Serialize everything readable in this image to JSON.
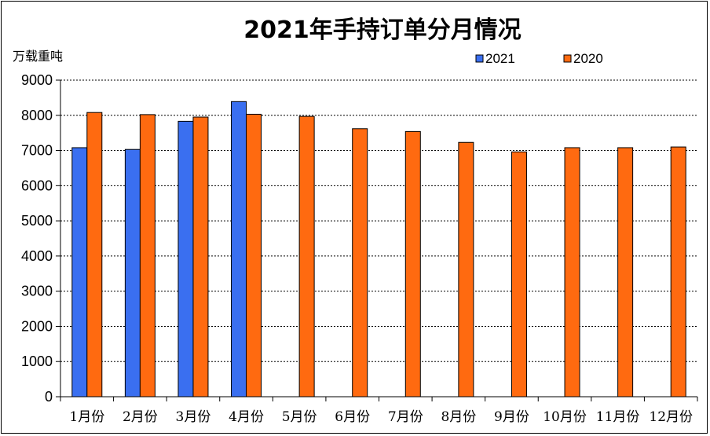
{
  "chart_data": {
    "type": "bar",
    "title": "2021年手持订单分月情况",
    "ylabel": "万载重吨",
    "xlabel": "",
    "ylim": [
      0,
      9000
    ],
    "yticks": [
      0,
      1000,
      2000,
      3000,
      4000,
      5000,
      6000,
      7000,
      8000,
      9000
    ],
    "grid": true,
    "legend_position": "top-right",
    "categories": [
      "1月份",
      "2月份",
      "3月份",
      "4月份",
      "5月份",
      "6月份",
      "7月份",
      "8月份",
      "9月份",
      "10月份",
      "11月份",
      "12月份"
    ],
    "series": [
      {
        "name": "2021",
        "color": "#3a6ff0",
        "values": [
          7080,
          7030,
          7830,
          8390,
          null,
          null,
          null,
          null,
          null,
          null,
          null,
          null
        ]
      },
      {
        "name": "2020",
        "color": "#ff6a10",
        "values": [
          8080,
          8020,
          7950,
          8030,
          7970,
          7620,
          7540,
          7230,
          6960,
          7080,
          7080,
          7100
        ]
      }
    ]
  }
}
